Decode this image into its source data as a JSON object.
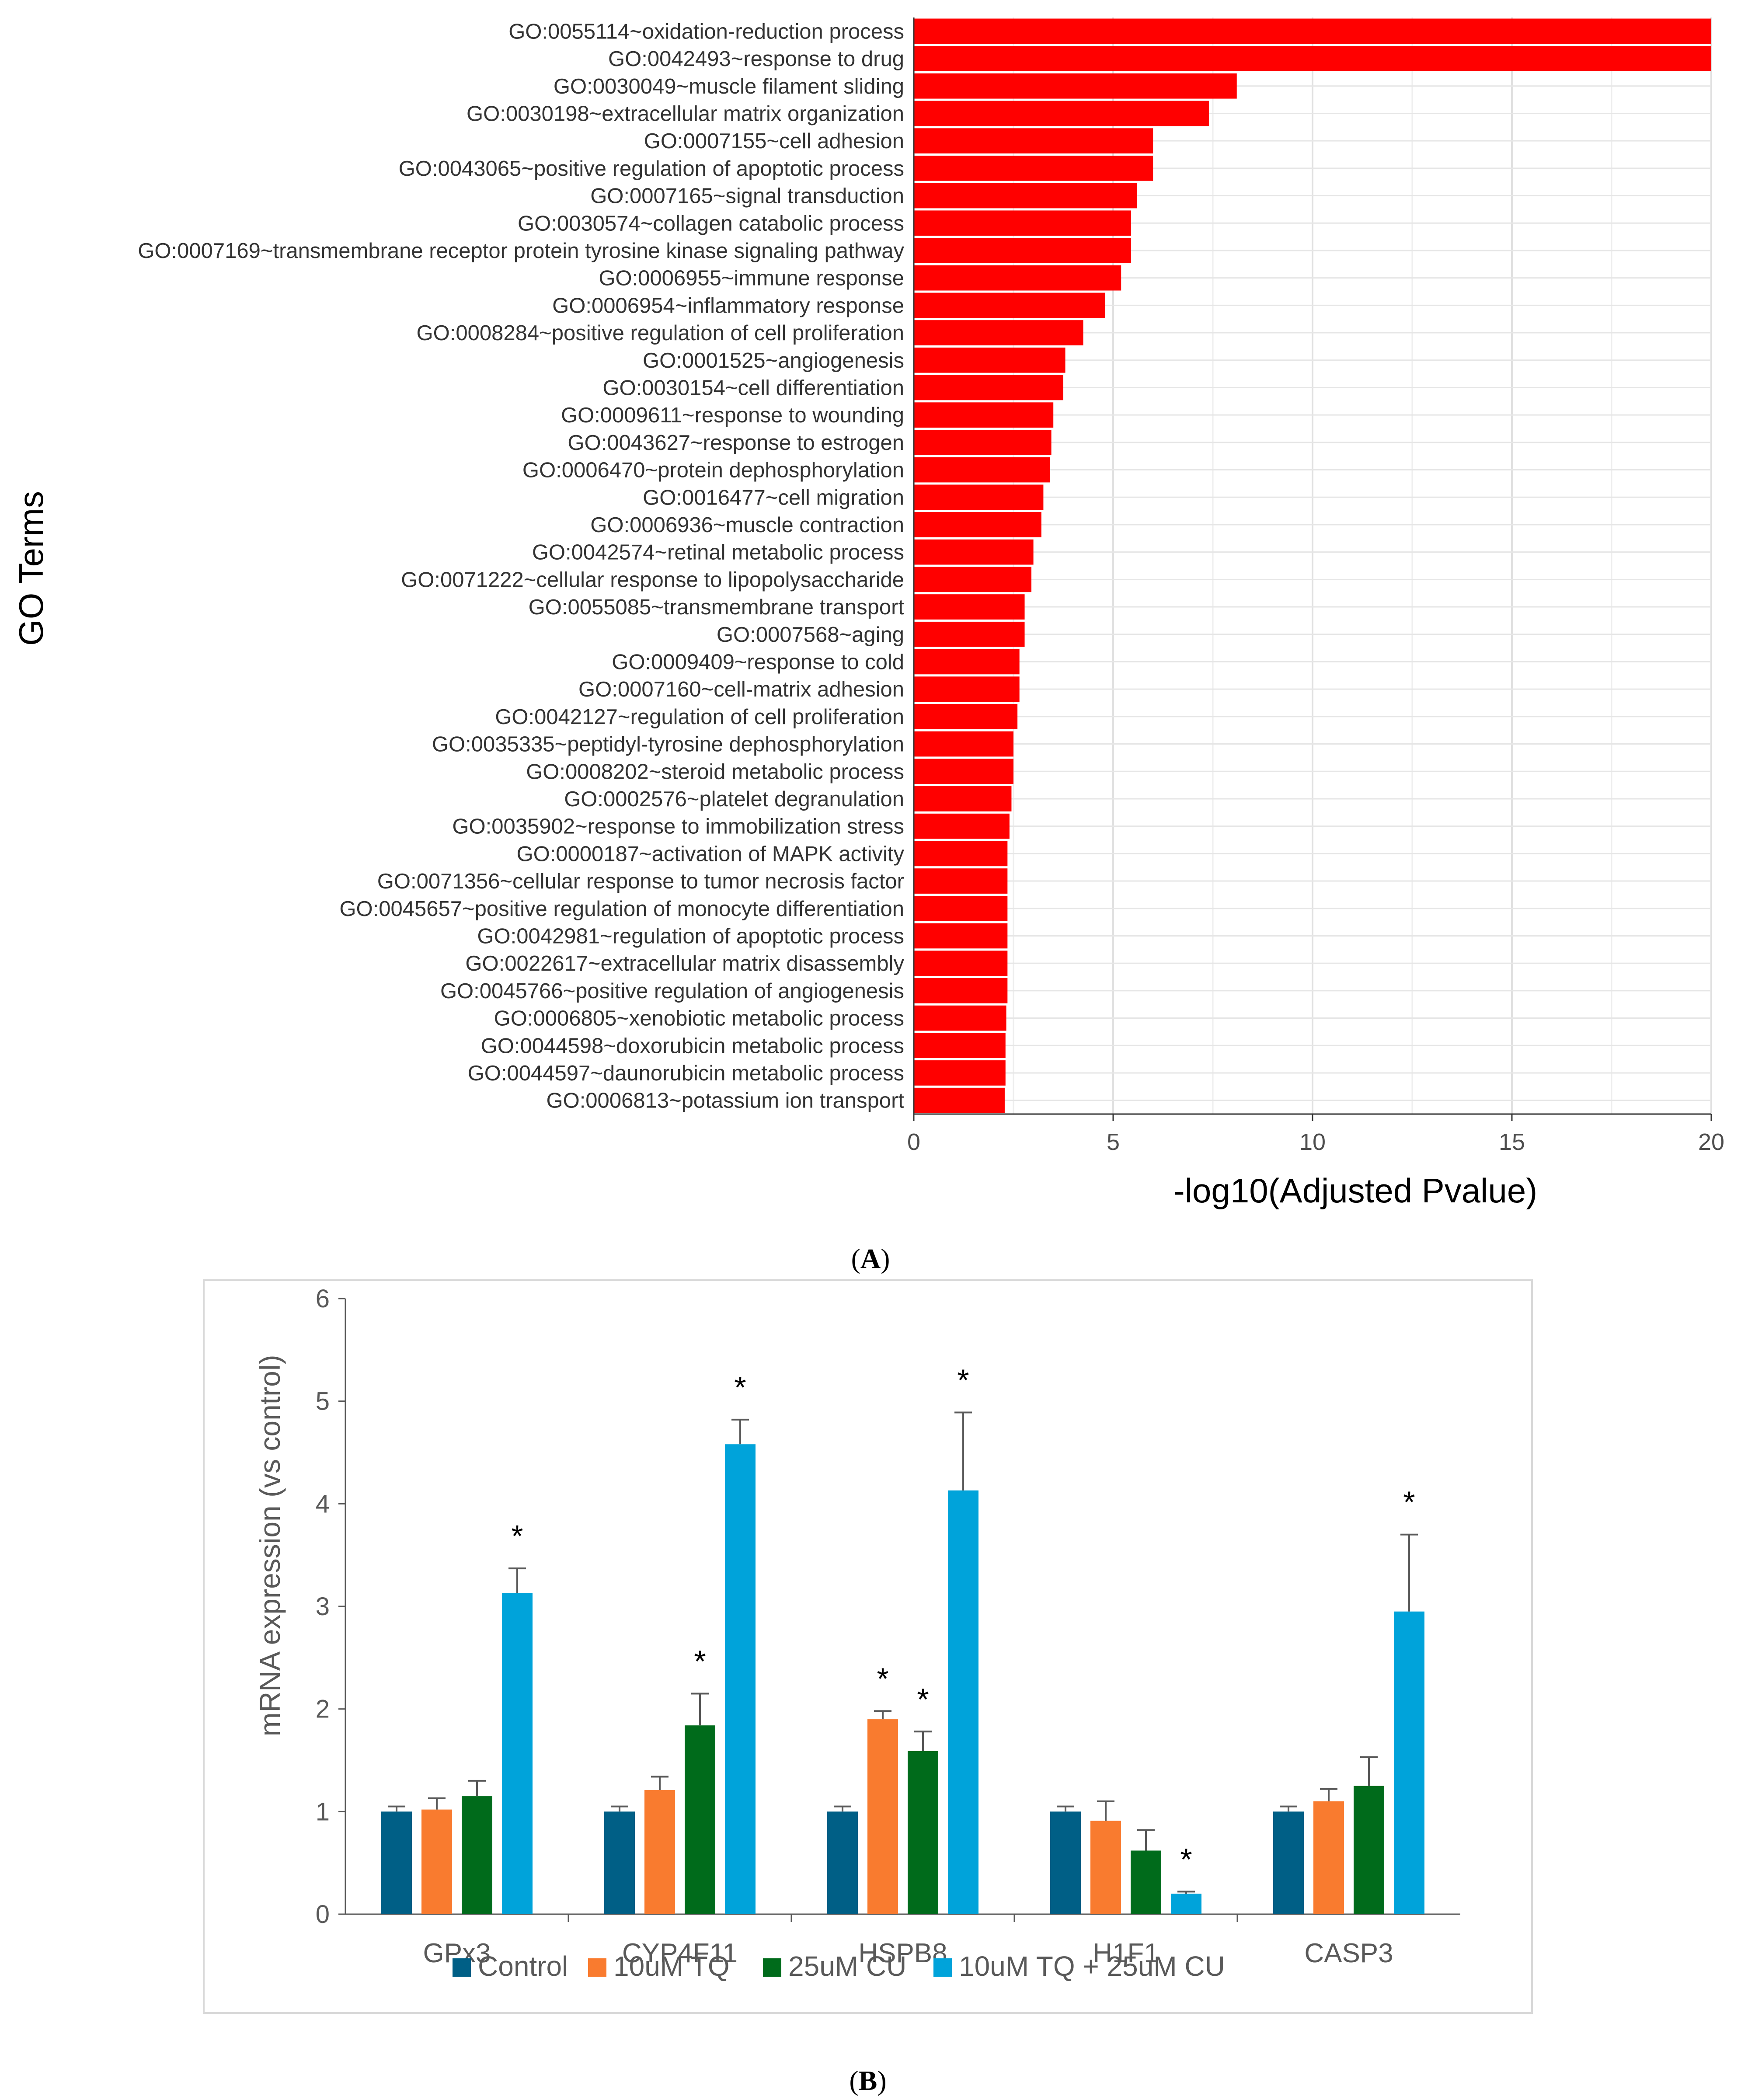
{
  "panel_a": {
    "caption": "(A)",
    "caption_letter": "A",
    "chart_data": {
      "type": "bar",
      "orientation": "horizontal",
      "ylabel": "GO Terms",
      "xlabel": "-log10(Adjusted Pvalue)",
      "xlim": [
        0,
        20
      ],
      "xticks": [
        "0",
        "5",
        "10",
        "15",
        "20"
      ],
      "grid": true,
      "bar_color": "#ff0000",
      "categories": [
        "GO:0055114~oxidation-reduction process",
        "GO:0042493~response to drug",
        "GO:0030049~muscle filament sliding",
        "GO:0030198~extracellular matrix organization",
        "GO:0007155~cell adhesion",
        "GO:0043065~positive regulation of apoptotic process",
        "GO:0007165~signal transduction",
        "GO:0030574~collagen catabolic process",
        "GO:0007169~transmembrane receptor protein tyrosine kinase signaling pathway",
        "GO:0006955~immune response",
        "GO:0006954~inflammatory response",
        "GO:0008284~positive regulation of cell proliferation",
        "GO:0001525~angiogenesis",
        "GO:0030154~cell differentiation",
        "GO:0009611~response to wounding",
        "GO:0043627~response to estrogen",
        "GO:0006470~protein dephosphorylation",
        "GO:0016477~cell migration",
        "GO:0006936~muscle contraction",
        "GO:0042574~retinal metabolic process",
        "GO:0071222~cellular response to lipopolysaccharide",
        "GO:0055085~transmembrane transport",
        "GO:0007568~aging",
        "GO:0009409~response to cold",
        "GO:0007160~cell-matrix adhesion",
        "GO:0042127~regulation of cell proliferation",
        "GO:0035335~peptidyl-tyrosine dephosphorylation",
        "GO:0008202~steroid metabolic process",
        "GO:0002576~platelet degranulation",
        "GO:0035902~response to immobilization stress",
        "GO:0000187~activation of MAPK activity",
        "GO:0071356~cellular response to tumor necrosis factor",
        "GO:0045657~positive regulation of monocyte differentiation",
        "GO:0042981~regulation of apoptotic process",
        "GO:0022617~extracellular matrix disassembly",
        "GO:0045766~positive regulation of angiogenesis",
        "GO:0006805~xenobiotic metabolic process",
        "GO:0044598~doxorubicin metabolic process",
        "GO:0044597~daunorubicin metabolic process",
        "GO:0006813~potassium ion transport"
      ],
      "values": [
        20,
        20,
        8.1,
        7.4,
        6.0,
        6.0,
        5.6,
        5.45,
        5.45,
        5.2,
        4.8,
        4.25,
        3.8,
        3.75,
        3.5,
        3.45,
        3.42,
        3.25,
        3.2,
        3.0,
        2.95,
        2.78,
        2.78,
        2.65,
        2.65,
        2.6,
        2.5,
        2.5,
        2.45,
        2.4,
        2.35,
        2.35,
        2.35,
        2.35,
        2.35,
        2.35,
        2.32,
        2.3,
        2.3,
        2.28
      ]
    }
  },
  "panel_b": {
    "caption": "(B)",
    "caption_letter": "B",
    "chart_data": {
      "type": "bar",
      "ylabel": "mRNA expression (vs control)",
      "xlabel": "",
      "ylim": [
        0,
        6
      ],
      "yticks": [
        "0",
        "1",
        "2",
        "3",
        "4",
        "5",
        "6"
      ],
      "grid": false,
      "legend_position": "bottom",
      "categories": [
        "GPx3",
        "CYP4F11",
        "HSPB8",
        "H1F1",
        "CASP3"
      ],
      "significance_marker": "*",
      "series": [
        {
          "name": "Control",
          "color": "#005f86",
          "values": [
            1.0,
            1.0,
            1.0,
            1.0,
            1.0
          ],
          "errors": [
            0.05,
            0.05,
            0.05,
            0.05,
            0.05
          ],
          "significant": [
            false,
            false,
            false,
            false,
            false
          ]
        },
        {
          "name": "10uM TQ",
          "color": "#f97b2f",
          "values": [
            1.02,
            1.21,
            1.9,
            0.91,
            1.1
          ],
          "errors": [
            0.11,
            0.13,
            0.08,
            0.19,
            0.12
          ],
          "significant": [
            false,
            false,
            true,
            false,
            false
          ]
        },
        {
          "name": "25uM CU",
          "color": "#006b1b",
          "values": [
            1.15,
            1.84,
            1.59,
            0.62,
            1.25
          ],
          "errors": [
            0.15,
            0.31,
            0.19,
            0.2,
            0.28
          ],
          "significant": [
            false,
            true,
            true,
            false,
            false
          ]
        },
        {
          "name": "10uM TQ + 25uM CU",
          "color": "#00a3da",
          "values": [
            3.13,
            4.58,
            4.13,
            0.2,
            2.95
          ],
          "errors": [
            0.24,
            0.24,
            0.76,
            0.02,
            0.75
          ],
          "significant": [
            true,
            true,
            true,
            true,
            true
          ]
        }
      ]
    }
  }
}
